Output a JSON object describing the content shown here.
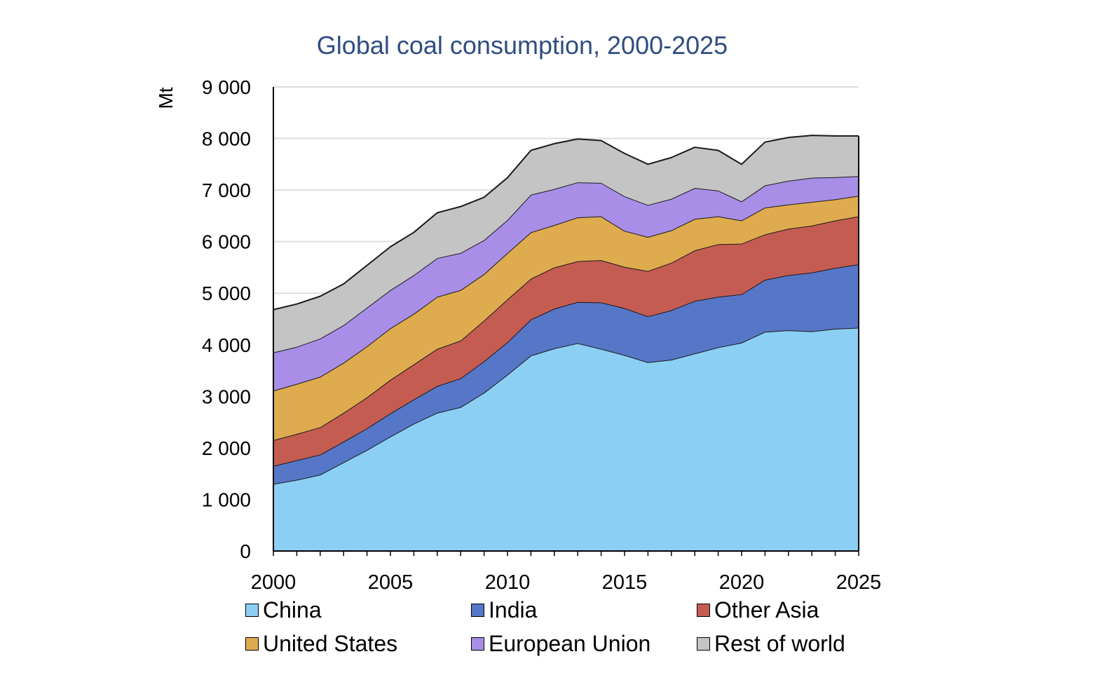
{
  "chart_data": {
    "type": "area",
    "stacked": true,
    "title": "Global coal consumption, 2000-2025",
    "ylabel": "Mt",
    "xlabel": "",
    "ylim": [
      0,
      9000
    ],
    "yticks": [
      0,
      1000,
      2000,
      3000,
      4000,
      5000,
      6000,
      7000,
      8000,
      9000
    ],
    "ytick_labels": [
      "0",
      "1 000",
      "2 000",
      "3 000",
      "4 000",
      "5 000",
      "6 000",
      "7 000",
      "8 000",
      "9 000"
    ],
    "xlim": [
      2000,
      2025
    ],
    "xticks": [
      2000,
      2005,
      2010,
      2015,
      2020,
      2025
    ],
    "xtick_labels": [
      "2000",
      "2005",
      "2010",
      "2015",
      "2020",
      "2025"
    ],
    "grid": "horizontal",
    "legend_position": "bottom",
    "x": [
      2000,
      2001,
      2002,
      2003,
      2004,
      2005,
      2006,
      2007,
      2008,
      2009,
      2010,
      2011,
      2012,
      2013,
      2014,
      2015,
      2016,
      2017,
      2018,
      2019,
      2020,
      2021,
      2022,
      2023,
      2024,
      2025
    ],
    "series": [
      {
        "name": "China",
        "color": "#8ccff5",
        "values": [
          1300,
          1380,
          1480,
          1720,
          1960,
          2220,
          2470,
          2680,
          2790,
          3070,
          3420,
          3790,
          3930,
          4030,
          3920,
          3800,
          3660,
          3710,
          3830,
          3950,
          4040,
          4250,
          4280,
          4260,
          4310,
          4330
        ]
      },
      {
        "name": "India",
        "color": "#5676c7",
        "values": [
          350,
          380,
          390,
          400,
          420,
          450,
          470,
          520,
          560,
          610,
          630,
          700,
          770,
          800,
          900,
          910,
          890,
          960,
          1020,
          980,
          940,
          1010,
          1070,
          1140,
          1180,
          1230
        ]
      },
      {
        "name": "Other Asia",
        "color": "#c45c52",
        "values": [
          500,
          510,
          530,
          560,
          600,
          650,
          680,
          720,
          730,
          790,
          830,
          790,
          800,
          790,
          820,
          800,
          880,
          920,
          980,
          1020,
          980,
          880,
          900,
          910,
          920,
          930
        ]
      },
      {
        "name": "United States",
        "color": "#dfab4f",
        "values": [
          960,
          970,
          980,
          970,
          990,
          1000,
          980,
          1010,
          980,
          900,
          900,
          900,
          820,
          850,
          850,
          700,
          660,
          630,
          610,
          540,
          450,
          520,
          470,
          460,
          410,
          400
        ]
      },
      {
        "name": "European Union",
        "color": "#a88ee6",
        "values": [
          740,
          720,
          740,
          730,
          750,
          740,
          750,
          750,
          720,
          660,
          640,
          730,
          700,
          680,
          650,
          670,
          620,
          610,
          600,
          500,
          370,
          430,
          460,
          470,
          430,
          380
        ]
      },
      {
        "name": "Rest of world",
        "color": "#c4c4c4",
        "values": [
          830,
          830,
          820,
          800,
          820,
          840,
          830,
          880,
          900,
          830,
          820,
          860,
          880,
          840,
          820,
          830,
          790,
          800,
          790,
          780,
          720,
          840,
          840,
          820,
          800,
          780
        ]
      }
    ]
  }
}
